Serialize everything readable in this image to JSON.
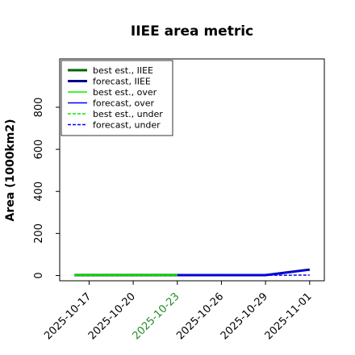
{
  "chart_data": {
    "type": "line",
    "title": "IIEE area metric",
    "xlabel": "",
    "ylabel": "Area (1000km2)",
    "xlim": [
      "2025-10-15",
      "2025-11-02"
    ],
    "ylim": [
      -25,
      1030
    ],
    "x_ticks": [
      "2025-10-17",
      "2025-10-20",
      "2025-10-23",
      "2025-10-26",
      "2025-10-29",
      "2025-11-01"
    ],
    "highlight_tick": "2025-10-23",
    "y_ticks": [
      0,
      200,
      400,
      600,
      800
    ],
    "grid": false,
    "legend_position": "upper-left",
    "series": [
      {
        "name": "best est., IIEE",
        "color": "#006400",
        "style": "solid",
        "width": 3,
        "x": [
          "2025-10-16",
          "2025-10-23"
        ],
        "y": [
          2,
          2
        ]
      },
      {
        "name": "forecast, IIEE",
        "color": "#00008b",
        "style": "solid",
        "width": 3,
        "x": [
          "2025-10-23",
          "2025-10-29",
          "2025-11-01"
        ],
        "y": [
          2,
          2,
          28
        ]
      },
      {
        "name": "best est., over",
        "color": "#00ee00",
        "style": "solid",
        "width": 1.5,
        "x": [
          "2025-10-16",
          "2025-10-23"
        ],
        "y": [
          2,
          2
        ]
      },
      {
        "name": "forecast, over",
        "color": "#0000ff",
        "style": "solid",
        "width": 1.5,
        "x": [
          "2025-10-23",
          "2025-10-29",
          "2025-11-01"
        ],
        "y": [
          2,
          2,
          26
        ]
      },
      {
        "name": "best est., under",
        "color": "#00ee00",
        "style": "dashed",
        "width": 1.5,
        "x": [
          "2025-10-16",
          "2025-10-23"
        ],
        "y": [
          1,
          1
        ]
      },
      {
        "name": "forecast, under",
        "color": "#0000ff",
        "style": "dashed",
        "width": 1.5,
        "x": [
          "2025-10-23",
          "2025-10-29",
          "2025-11-01"
        ],
        "y": [
          1,
          1,
          2
        ]
      }
    ]
  },
  "colors": {
    "highlight_tick": "#228b22",
    "tick_default": "#000000"
  }
}
